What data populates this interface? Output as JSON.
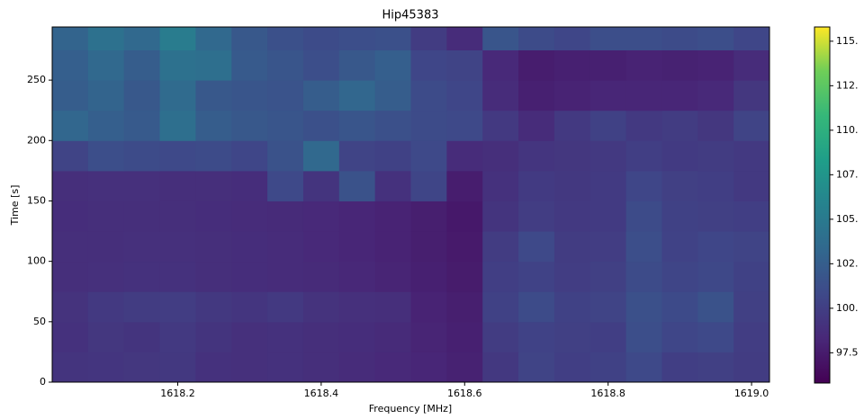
{
  "chart_data": {
    "type": "heatmap",
    "title": "Hip45383",
    "x_label": "Frequency [MHz]",
    "y_label": "Time [s]",
    "xlim": [
      1618.025,
      1619.025
    ],
    "ylim": [
      0,
      294
    ],
    "xticks": [
      1618.2,
      1618.4,
      1618.6,
      1618.8,
      {
        "value": 1619.0,
        "label": "1619.0"
      }
    ],
    "yticks": [
      0,
      50,
      100,
      150,
      200,
      250
    ],
    "colormap": "viridis",
    "clim": [
      95.8,
      115.8
    ],
    "cticks": [
      {
        "value": 97.5,
        "label": "97.5"
      },
      {
        "value": 100.0,
        "label": "100."
      },
      {
        "value": 102.5,
        "label": "102."
      },
      {
        "value": 105.0,
        "label": "105."
      },
      {
        "value": 107.5,
        "label": "107."
      },
      {
        "value": 110.0,
        "label": "110."
      },
      {
        "value": 112.5,
        "label": "112."
      },
      {
        "value": 115.0,
        "label": "115."
      }
    ],
    "xbins": [
      1618.025,
      1618.075,
      1618.125,
      1618.175,
      1618.225,
      1618.275,
      1618.325,
      1618.375,
      1618.425,
      1618.475,
      1618.525,
      1618.575,
      1618.625,
      1618.675,
      1618.725,
      1618.775,
      1618.825,
      1618.875,
      1618.925,
      1618.975,
      1619.025
    ],
    "ybins": [
      0,
      25,
      50,
      75,
      100,
      125,
      150,
      175,
      200,
      225,
      250,
      275,
      294
    ],
    "z": [
      [
        99.2,
        99.3,
        99.4,
        99.5,
        99.0,
        98.9,
        99.0,
        98.8,
        98.6,
        98.4,
        98.2,
        97.9,
        99.5,
        100.4,
        100.0,
        100.2,
        100.8,
        100.0,
        100.1,
        99.8
      ],
      [
        99.0,
        99.4,
        99.2,
        99.6,
        99.2,
        98.9,
        99.0,
        98.8,
        98.7,
        98.5,
        98.1,
        97.8,
        99.8,
        100.3,
        100.1,
        100.0,
        101.2,
        100.6,
        100.8,
        99.9
      ],
      [
        99.1,
        99.6,
        99.8,
        99.9,
        99.5,
        99.3,
        99.6,
        99.1,
        98.9,
        98.8,
        98.0,
        97.7,
        100.2,
        101.0,
        100.2,
        100.4,
        101.4,
        100.9,
        101.5,
        100.1
      ],
      [
        98.8,
        98.9,
        99.0,
        99.0,
        98.8,
        98.7,
        98.6,
        98.5,
        98.3,
        98.1,
        97.8,
        97.5,
        100.0,
        100.3,
        99.9,
        100.1,
        101.0,
        100.5,
        100.7,
        100.2
      ],
      [
        98.8,
        98.8,
        98.9,
        98.9,
        98.8,
        98.7,
        98.6,
        98.4,
        98.2,
        98.0,
        97.7,
        97.4,
        99.8,
        100.8,
        99.8,
        99.9,
        101.2,
        100.3,
        100.6,
        100.4
      ],
      [
        98.7,
        98.8,
        98.8,
        98.8,
        98.7,
        98.6,
        98.5,
        98.4,
        98.2,
        98.0,
        97.7,
        97.3,
        99.2,
        99.9,
        99.6,
        99.7,
        101.0,
        100.2,
        100.1,
        100.0
      ],
      [
        98.8,
        98.9,
        98.9,
        98.8,
        98.8,
        98.7,
        100.8,
        99.2,
        101.5,
        99.0,
        100.5,
        97.6,
        99.0,
        99.7,
        99.5,
        99.7,
        100.6,
        100.1,
        100.0,
        99.6
      ],
      [
        100.4,
        101.2,
        101.0,
        100.8,
        101.0,
        100.6,
        101.5,
        103.4,
        100.4,
        100.2,
        100.8,
        98.6,
        98.8,
        99.3,
        99.4,
        99.6,
        100.0,
        99.7,
        99.8,
        99.6
      ],
      [
        103.2,
        102.6,
        102.2,
        104.0,
        102.4,
        102.0,
        101.8,
        101.4,
        101.8,
        101.4,
        101.0,
        100.8,
        99.6,
        98.6,
        99.6,
        100.2,
        99.6,
        99.8,
        99.4,
        100.4
      ],
      [
        102.4,
        103.0,
        102.0,
        103.6,
        102.0,
        101.8,
        101.6,
        102.4,
        103.2,
        102.4,
        101.0,
        100.6,
        98.6,
        97.8,
        98.0,
        98.2,
        98.2,
        98.2,
        98.4,
        99.4
      ],
      [
        102.6,
        103.4,
        102.4,
        104.2,
        104.0,
        102.2,
        101.8,
        101.2,
        102.0,
        102.6,
        100.6,
        100.4,
        98.4,
        97.6,
        97.8,
        97.8,
        98.0,
        97.9,
        98.0,
        98.6
      ],
      [
        103.0,
        104.2,
        103.4,
        105.2,
        103.4,
        102.0,
        101.4,
        101.0,
        101.2,
        101.4,
        99.8,
        98.6,
        101.8,
        101.0,
        100.6,
        101.2,
        101.2,
        101.0,
        101.2,
        100.6
      ]
    ]
  }
}
